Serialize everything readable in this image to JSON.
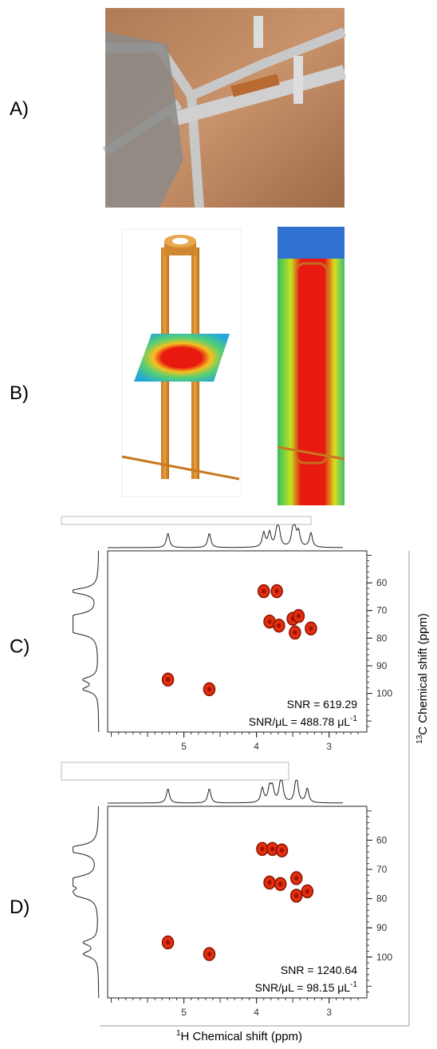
{
  "panels_top": [
    {
      "label": "A)"
    },
    {
      "label": "B)"
    }
  ],
  "spectra": [
    {
      "label": "C)",
      "xlim": [
        6.05,
        2.48
      ],
      "ylim": [
        48.4,
        114
      ],
      "xticks": [
        5,
        4,
        3
      ],
      "yticks": [
        60,
        70,
        80,
        90,
        100
      ],
      "snr": "SNR = 619.29",
      "snr_ul": "SNR/μL = 488.78 μL",
      "snr_ul_exp": "-1",
      "peaks": [
        [
          3.9,
          63
        ],
        [
          3.72,
          63
        ],
        [
          3.82,
          74
        ],
        [
          3.69,
          75.5
        ],
        [
          3.5,
          73
        ],
        [
          3.42,
          72
        ],
        [
          3.47,
          78
        ],
        [
          3.25,
          76.5
        ],
        [
          5.22,
          95
        ],
        [
          4.65,
          98.5
        ]
      ]
    },
    {
      "label": "D)",
      "xlim": [
        6.05,
        2.48
      ],
      "ylim": [
        48.4,
        114
      ],
      "xticks": [
        5,
        4,
        3
      ],
      "yticks": [
        60,
        70,
        80,
        90,
        100
      ],
      "snr": "SNR = 1240.64",
      "snr_ul": "SNR/μL = 98.15 μL",
      "snr_ul_exp": "-1",
      "peaks": [
        [
          3.92,
          63
        ],
        [
          3.78,
          63
        ],
        [
          3.65,
          63.5
        ],
        [
          3.82,
          74.5
        ],
        [
          3.67,
          75
        ],
        [
          3.45,
          73
        ],
        [
          3.3,
          77.5
        ],
        [
          3.45,
          79
        ],
        [
          5.22,
          95
        ],
        [
          4.65,
          99
        ]
      ]
    }
  ],
  "y_axis_title": {
    "sup": "13",
    "text": "C Chemical shift (ppm)"
  },
  "x_axis_title": {
    "sup": "1",
    "text": "H Chemical shift (ppm)"
  }
}
